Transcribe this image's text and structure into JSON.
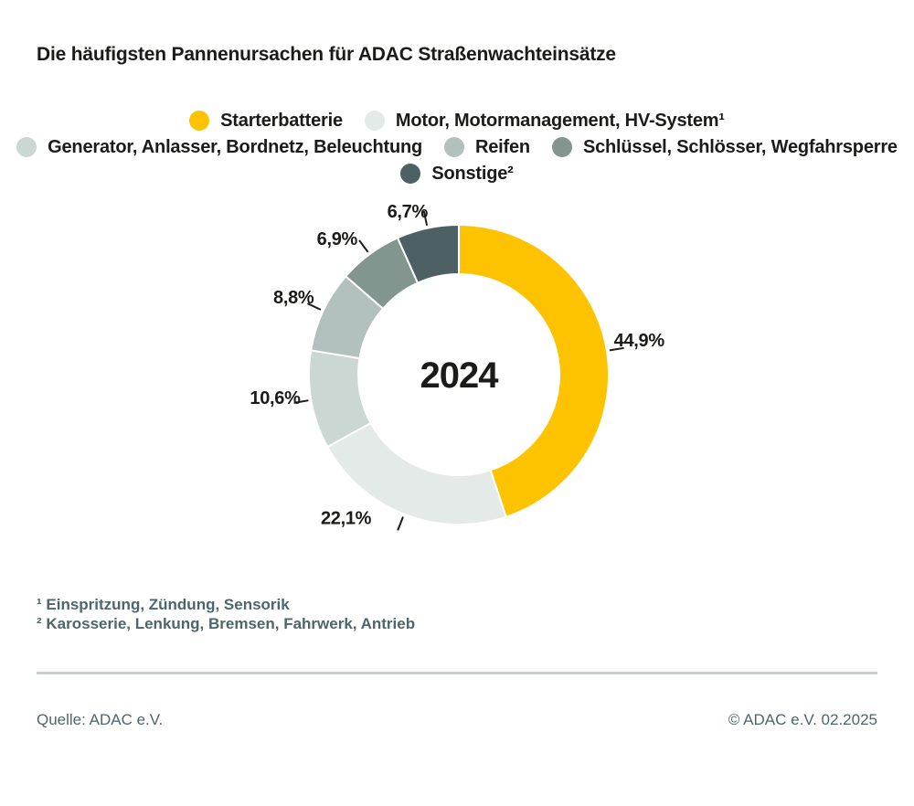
{
  "title": "Die häufigsten Pannenursachen für ADAC Straßenwachteinsätze",
  "chart_data": {
    "type": "pie",
    "subtype": "donut",
    "center_label": "2024",
    "direction": "clockwise",
    "start_angle_deg": 0,
    "legend_position": "top",
    "categories": [
      "Starterbatterie",
      "Motor, Motormanagement, HV-System¹",
      "Generator, Anlasser, Bordnetz, Beleuchtung",
      "Reifen",
      "Schlüssel, Schlösser, Wegfahrsperre",
      "Sonstige²"
    ],
    "values": [
      44.9,
      22.1,
      10.6,
      8.8,
      6.9,
      6.7
    ],
    "labels": [
      "44,9%",
      "22,1%",
      "10,6%",
      "8,8%",
      "6,9%",
      "6,7%"
    ],
    "colors": [
      "#FDC300",
      "#E3EAE7",
      "#CBD7D3",
      "#B2C1BD",
      "#82958F",
      "#4D6164"
    ]
  },
  "footnotes": [
    "¹ Einspritzung, Zündung, Sensorik",
    "² Karosserie, Lenkung, Bremsen, Fahrwerk, Antrieb"
  ],
  "footer": {
    "source": "Quelle: ADAC e.V.",
    "copyright": "© ADAC e.V. 02.2025"
  }
}
